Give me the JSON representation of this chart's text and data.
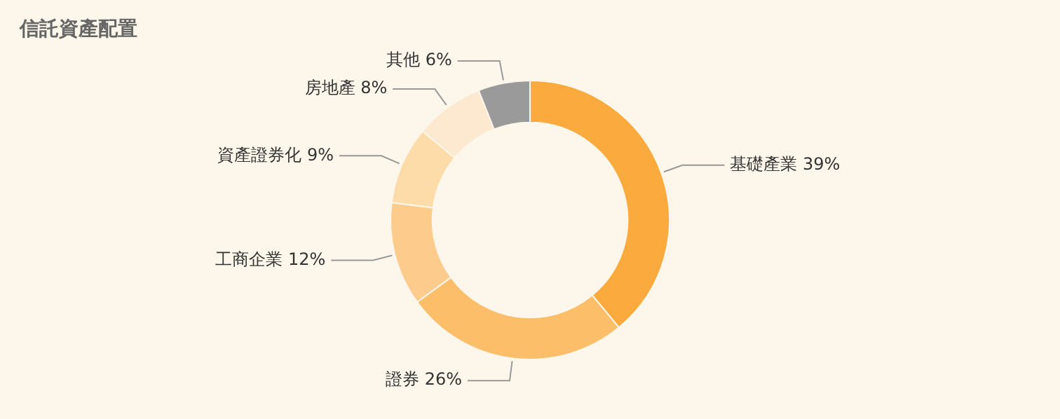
{
  "chart_data": {
    "type": "donut",
    "title": "信託資產配置",
    "categories": [
      "基礎產業",
      "證券",
      "工商企業",
      "資產證券化",
      "房地產",
      "其他"
    ],
    "values": [
      39,
      26,
      12,
      9,
      8,
      6
    ],
    "value_labels": [
      "39%",
      "26%",
      "12%",
      "9%",
      "8%",
      "6%"
    ],
    "colors": [
      "#fbab3e",
      "#fdbe6a",
      "#fdcc8c",
      "#fddcaa",
      "#fde9cf",
      "#9a9a9a"
    ],
    "legend": false
  }
}
